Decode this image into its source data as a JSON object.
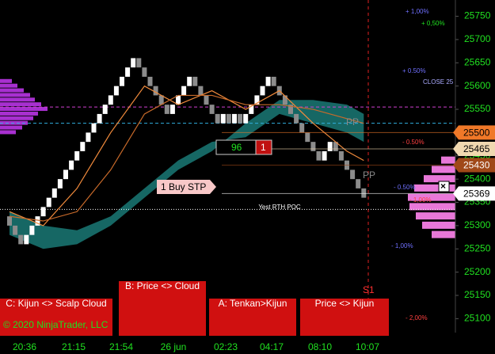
{
  "chart_data": {
    "type": "renko",
    "ylim": [
      25070,
      25785
    ],
    "yticks": [
      25100,
      25150,
      25200,
      25250,
      25300,
      25350,
      25400,
      25450,
      25500,
      25550,
      25600,
      25650,
      25700,
      25750
    ],
    "x_labels": [
      "20:36",
      "21:15",
      "21:54",
      "26 jun",
      "02:23",
      "04:17",
      "08:10",
      "10:07"
    ],
    "up_color": "#ffffff",
    "down_color": "#8c8c8c",
    "bricks": {
      "open": [
        25320,
        25300,
        25280,
        25260,
        25280,
        25300,
        25320,
        25340,
        25360,
        25380,
        25400,
        25420,
        25440,
        25460,
        25480,
        25500,
        25520,
        25540,
        25560,
        25580,
        25600,
        25620,
        25640,
        25660,
        25640,
        25620,
        25600,
        25580,
        25560,
        25540,
        25560,
        25580,
        25600,
        25620,
        25600,
        25580,
        25560,
        25540,
        25520,
        25540,
        25520,
        25540,
        25520,
        25540,
        25560,
        25580,
        25600,
        25620,
        25600,
        25580,
        25560,
        25540,
        25520,
        25500,
        25480,
        25460,
        25440,
        25460,
        25480,
        25460,
        25440,
        25420,
        25400,
        25380
      ],
      "close": [
        25300,
        25280,
        25260,
        25280,
        25300,
        25320,
        25340,
        25360,
        25380,
        25400,
        25420,
        25440,
        25460,
        25480,
        25500,
        25520,
        25540,
        25560,
        25580,
        25600,
        25620,
        25640,
        25660,
        25640,
        25620,
        25600,
        25580,
        25560,
        25540,
        25560,
        25580,
        25600,
        25620,
        25600,
        25580,
        25560,
        25540,
        25520,
        25540,
        25520,
        25540,
        25520,
        25540,
        25560,
        25580,
        25600,
        25620,
        25600,
        25580,
        25560,
        25540,
        25520,
        25500,
        25480,
        25460,
        25440,
        25460,
        25480,
        25460,
        25440,
        25420,
        25400,
        25380,
        25360
      ]
    },
    "cloud": {
      "x": [
        0,
        6,
        12,
        18,
        24,
        30,
        36,
        42,
        48,
        54,
        60,
        63
      ],
      "span_a": [
        25280,
        25250,
        25260,
        25300,
        25360,
        25420,
        25460,
        25520,
        25570,
        25570,
        25560,
        25540
      ],
      "span_b": [
        25330,
        25300,
        25290,
        25320,
        25380,
        25440,
        25480,
        25490,
        25540,
        25520,
        25500,
        25480
      ],
      "color": "#1d8a86"
    },
    "series": [
      {
        "x": [
          0,
          6,
          12,
          18,
          24,
          30,
          36,
          42,
          48,
          54,
          60,
          63
        ],
        "values": [
          25330,
          25300,
          25380,
          25500,
          25600,
          25560,
          25590,
          25550,
          25590,
          25520,
          25460,
          25440
        ],
        "color": "#f08a3c"
      },
      {
        "x": [
          0,
          6,
          12,
          18,
          24,
          30,
          36,
          42,
          48,
          54,
          60,
          63
        ],
        "values": [
          25320,
          25310,
          25330,
          25420,
          25540,
          25580,
          25580,
          25560,
          25560,
          25550,
          25530,
          25520
        ],
        "color": "#c86a2a"
      }
    ],
    "hlines": [
      {
        "value": 25555,
        "color": "#d040d0"
      },
      {
        "value": 25520,
        "color": "#30b0e0"
      },
      {
        "value": 25335,
        "color": "#ffffff"
      }
    ],
    "left_profile": {
      "prices": [
        25500,
        25510,
        25520,
        25530,
        25540,
        25550,
        25560,
        25570,
        25580,
        25590,
        25600,
        25610
      ],
      "sizes": [
        20,
        28,
        35,
        42,
        48,
        60,
        52,
        44,
        38,
        30,
        22,
        15
      ],
      "color": "#a830d0"
    },
    "right_profile": {
      "prices": [
        25280,
        25300,
        25320,
        25340,
        25360,
        25380,
        25400,
        25420,
        25440
      ],
      "sizes": [
        30,
        42,
        50,
        58,
        60,
        52,
        40,
        30,
        18
      ],
      "color": "#e878d8"
    },
    "price_labels": [
      {
        "value": 25500,
        "label": "25500",
        "color": "#f07828"
      },
      {
        "value": 25465,
        "label": "25465",
        "color": "#f0d8b0"
      },
      {
        "value": 25430,
        "label": "25430",
        "color": "#a04818"
      },
      {
        "value": 25369,
        "label": "25369",
        "color": "#ffffff"
      }
    ],
    "annotations": {
      "pct": [
        "+ 1,00%",
        "+ 0,50%",
        "+ 0.50%",
        "CLOSE 25",
        "- 0.50%",
        "- 0.50%",
        "- 1,00%",
        "- 1,00%",
        "- 2,00%"
      ],
      "pp1": "PP",
      "pp2": "PP",
      "s1": "S1",
      "poc": "Yest RTH POC",
      "order_qty": "96",
      "order_count": "1",
      "order_label": "1 Buy STP",
      "copyright": "© 2020 NinjaTrader, LLC"
    },
    "buttons": [
      "C: Kijun <> Scalp Cloud",
      "B: Price <> Cloud",
      "A: Tenkan>Kijun",
      "Price <> Kijun"
    ]
  }
}
